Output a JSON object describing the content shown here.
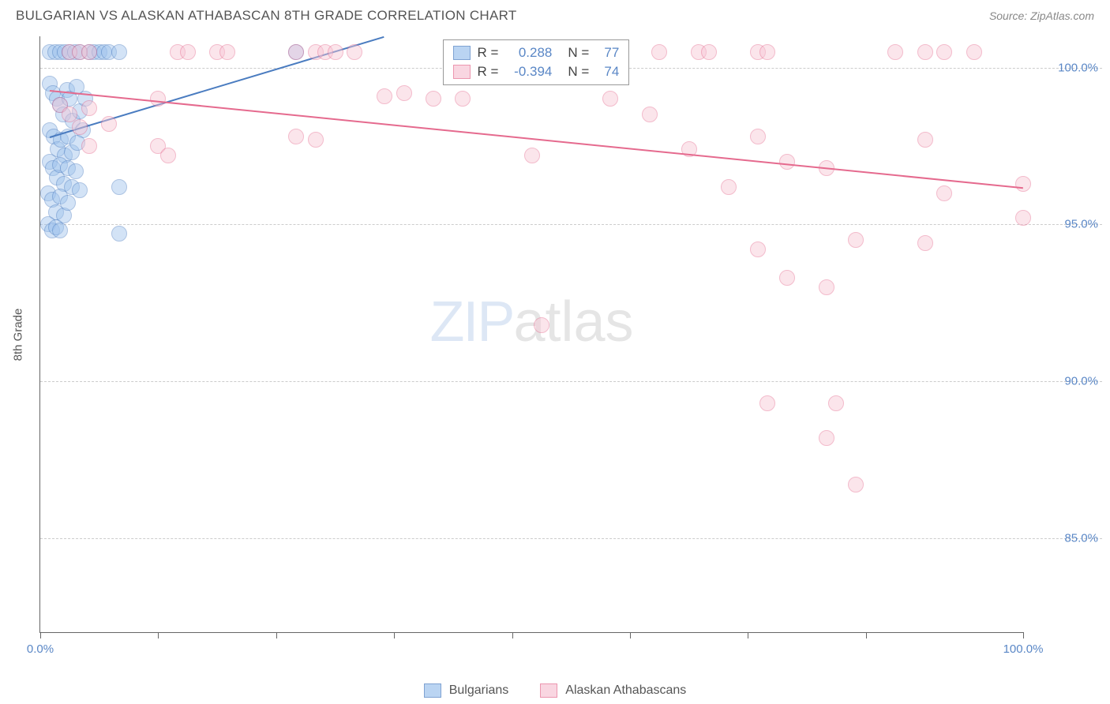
{
  "title": "BULGARIAN VS ALASKAN ATHABASCAN 8TH GRADE CORRELATION CHART",
  "source": "Source: ZipAtlas.com",
  "ylabel": "8th Grade",
  "watermark_a": "ZIP",
  "watermark_b": "atlas",
  "chart": {
    "type": "scatter",
    "background_color": "#ffffff",
    "grid_color": "#cccccc",
    "axis_color": "#666666",
    "label_color": "#5a87c6",
    "xlim": [
      0,
      100
    ],
    "ylim": [
      82,
      101
    ],
    "xtick_positions": [
      0,
      12,
      24,
      36,
      48,
      60,
      72,
      84,
      100
    ],
    "xtick_labels": {
      "0": "0.0%",
      "100": "100.0%"
    },
    "ytick_positions": [
      85,
      90,
      95,
      100
    ],
    "ytick_labels": {
      "85": "85.0%",
      "90": "90.0%",
      "95": "95.0%",
      "100": "100.0%"
    },
    "marker_radius": 10,
    "marker_border_width": 1.5,
    "line_width": 2,
    "series": [
      {
        "name": "Bulgarians",
        "fill_color": "#9ec2ed",
        "border_color": "#4a7cc0",
        "fill_opacity": 0.45,
        "r_value": "0.288",
        "n_value": "77",
        "trend": {
          "x1": 1,
          "y1": 97.8,
          "x2": 35,
          "y2": 101
        },
        "points": [
          [
            1,
            100.5
          ],
          [
            1.5,
            100.5
          ],
          [
            2,
            100.5
          ],
          [
            2.5,
            100.5
          ],
          [
            3,
            100.5
          ],
          [
            3.5,
            100.5
          ],
          [
            4,
            100.5
          ],
          [
            5,
            100.5
          ],
          [
            5.5,
            100.5
          ],
          [
            6,
            100.5
          ],
          [
            6.5,
            100.5
          ],
          [
            7,
            100.5
          ],
          [
            8,
            100.5
          ],
          [
            26,
            100.5
          ],
          [
            1,
            99.5
          ],
          [
            1.3,
            99.2
          ],
          [
            1.7,
            99
          ],
          [
            2,
            98.8
          ],
          [
            2.3,
            98.5
          ],
          [
            2.7,
            99.3
          ],
          [
            3,
            99
          ],
          [
            3.3,
            98.3
          ],
          [
            3.7,
            99.4
          ],
          [
            4,
            98.6
          ],
          [
            4.3,
            98
          ],
          [
            4.6,
            99
          ],
          [
            1,
            98
          ],
          [
            1.4,
            97.8
          ],
          [
            1.8,
            97.4
          ],
          [
            2.1,
            97.7
          ],
          [
            2.5,
            97.2
          ],
          [
            2.8,
            97.8
          ],
          [
            3.2,
            97.3
          ],
          [
            3.8,
            97.6
          ],
          [
            1,
            97
          ],
          [
            1.3,
            96.8
          ],
          [
            1.7,
            96.5
          ],
          [
            2,
            96.9
          ],
          [
            2.4,
            96.3
          ],
          [
            2.8,
            96.8
          ],
          [
            3.2,
            96.2
          ],
          [
            3.6,
            96.7
          ],
          [
            4,
            96.1
          ],
          [
            0.8,
            96
          ],
          [
            1.2,
            95.8
          ],
          [
            1.6,
            95.4
          ],
          [
            2,
            95.9
          ],
          [
            2.4,
            95.3
          ],
          [
            2.8,
            95.7
          ],
          [
            8,
            96.2
          ],
          [
            0.8,
            95
          ],
          [
            1.2,
            94.8
          ],
          [
            1.6,
            94.9
          ],
          [
            2,
            94.8
          ],
          [
            8,
            94.7
          ]
        ]
      },
      {
        "name": "Alaskan Athabascans",
        "fill_color": "#f7c6d5",
        "border_color": "#e56a8e",
        "fill_opacity": 0.45,
        "r_value": "-0.394",
        "n_value": "74",
        "trend": {
          "x1": 1,
          "y1": 99.3,
          "x2": 100,
          "y2": 96.2
        },
        "points": [
          [
            3,
            100.5
          ],
          [
            4,
            100.5
          ],
          [
            5,
            100.5
          ],
          [
            14,
            100.5
          ],
          [
            15,
            100.5
          ],
          [
            18,
            100.5
          ],
          [
            19,
            100.5
          ],
          [
            26,
            100.5
          ],
          [
            28,
            100.5
          ],
          [
            29,
            100.5
          ],
          [
            30,
            100.5
          ],
          [
            32,
            100.5
          ],
          [
            43,
            100.5
          ],
          [
            50,
            100.5
          ],
          [
            53,
            100.5
          ],
          [
            56,
            100.5
          ],
          [
            59,
            100.5
          ],
          [
            63,
            100.5
          ],
          [
            67,
            100.5
          ],
          [
            68,
            100.5
          ],
          [
            73,
            100.5
          ],
          [
            74,
            100.5
          ],
          [
            87,
            100.5
          ],
          [
            90,
            100.5
          ],
          [
            92,
            100.5
          ],
          [
            95,
            100.5
          ],
          [
            2,
            98.8
          ],
          [
            3,
            98.5
          ],
          [
            4,
            98.1
          ],
          [
            5,
            98.7
          ],
          [
            7,
            98.2
          ],
          [
            12,
            99
          ],
          [
            35,
            99.1
          ],
          [
            37,
            99.2
          ],
          [
            40,
            99
          ],
          [
            43,
            99
          ],
          [
            58,
            99
          ],
          [
            62,
            98.5
          ],
          [
            5,
            97.5
          ],
          [
            12,
            97.5
          ],
          [
            13,
            97.2
          ],
          [
            26,
            97.8
          ],
          [
            28,
            97.7
          ],
          [
            50,
            97.2
          ],
          [
            66,
            97.4
          ],
          [
            76,
            97
          ],
          [
            90,
            97.7
          ],
          [
            73,
            97.8
          ],
          [
            70,
            96.2
          ],
          [
            80,
            96.8
          ],
          [
            100,
            96.3
          ],
          [
            92,
            96
          ],
          [
            73,
            94.2
          ],
          [
            83,
            94.5
          ],
          [
            90,
            94.4
          ],
          [
            100,
            95.2
          ],
          [
            76,
            93.3
          ],
          [
            80,
            93
          ],
          [
            51,
            91.8
          ],
          [
            74,
            89.3
          ],
          [
            81,
            89.3
          ],
          [
            80,
            88.2
          ],
          [
            83,
            86.7
          ]
        ]
      }
    ],
    "legend": {
      "r_label": "R =",
      "n_label": "N ="
    },
    "bottom_legend": [
      "Bulgarians",
      "Alaskan Athabascans"
    ]
  }
}
